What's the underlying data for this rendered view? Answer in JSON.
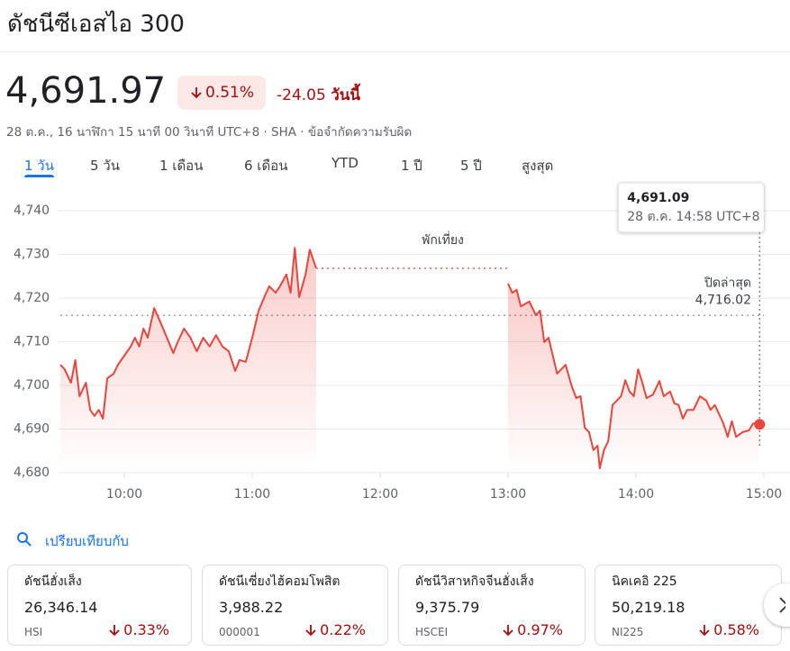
{
  "header": {
    "title": "ดัชนีซีเอสไอ 300"
  },
  "quote": {
    "price": "4,691.97",
    "change_percent": "0.51%",
    "change": "-24.05",
    "change_period": "วันนี้",
    "timestamp": "28 ต.ค., 16 นาฬิกา 15 นาที 00 วินาที UTC+8 · SHA · ข้อจำกัดความรับผิด"
  },
  "tabs": [
    "1 วัน",
    "5 วัน",
    "1 เดือน",
    "6 เดือน",
    "YTD",
    "1 ปี",
    "5 ปี",
    "สูงสุด"
  ],
  "active_tab": 0,
  "chart_data": {
    "type": "line",
    "x": [
      570,
      572,
      575,
      577,
      579,
      582,
      584,
      586,
      588,
      590,
      592,
      595,
      597,
      600,
      603,
      605,
      607,
      609,
      611,
      614,
      617,
      620,
      623,
      625,
      628,
      631,
      634,
      637,
      640,
      643,
      646,
      649,
      652,
      654,
      657,
      660,
      663,
      666,
      668,
      671,
      673,
      676,
      678,
      680,
      682,
      685,
      687,
      690,
      null,
      780,
      782,
      784,
      786,
      790,
      793,
      795,
      797,
      799,
      801,
      803,
      805,
      807,
      810,
      812,
      814,
      816,
      818,
      820,
      822,
      823,
      825,
      827,
      829,
      833,
      835,
      837,
      839,
      841,
      843,
      845,
      848,
      851,
      853,
      856,
      858,
      860,
      862,
      864,
      867,
      870,
      873,
      875,
      877,
      879,
      881,
      883,
      885,
      887,
      890,
      893,
      895,
      898
    ],
    "series": [
      {
        "color": "#e8453c",
        "values": [
          4704.7,
          4703.7,
          4700.6,
          4705.8,
          4697.5,
          4700.6,
          4694.4,
          4693.0,
          4694.4,
          4692.4,
          4701.6,
          4702.7,
          4704.7,
          4706.8,
          4708.9,
          4710.9,
          4708.9,
          4713.0,
          4710.9,
          4717.7,
          4714.4,
          4710.9,
          4707.4,
          4709.9,
          4713.0,
          4710.9,
          4707.8,
          4710.9,
          4708.9,
          4711.5,
          4708.9,
          4707.8,
          4703.3,
          4705.8,
          4705.4,
          4710.9,
          4717.1,
          4720.6,
          4722.7,
          4721.2,
          4722.7,
          4725.4,
          4721.2,
          4731.5,
          4720.2,
          4725.4,
          4731.1,
          4726.8,
          null,
          4723.3,
          4721.2,
          4721.9,
          4718.1,
          4719.2,
          4716.1,
          4717.1,
          4709.9,
          4710.9,
          4706.8,
          4702.7,
          4703.7,
          4704.7,
          4699.6,
          4697.1,
          4697.5,
          4690.3,
          4689.3,
          4685.2,
          4686.2,
          4681.0,
          4685.2,
          4687.2,
          4695.5,
          4697.5,
          4701.2,
          4698.6,
          4697.5,
          4703.7,
          4700.6,
          4697.1,
          4697.9,
          4701.0,
          4697.5,
          4698.6,
          4695.9,
          4695.5,
          4692.4,
          4694.4,
          4694.4,
          4697.5,
          4696.5,
          4694.4,
          4695.5,
          4693.4,
          4691.3,
          4688.2,
          4691.8,
          4688.2,
          4689.3,
          4689.7,
          4691.3,
          4691.09
        ]
      }
    ],
    "xlim": [
      570,
      900
    ],
    "xticks": [
      {
        "value": 600,
        "label": "10:00"
      },
      {
        "value": 660,
        "label": "11:00"
      },
      {
        "value": 720,
        "label": "12:00"
      },
      {
        "value": 780,
        "label": "13:00"
      },
      {
        "value": 840,
        "label": "14:00"
      },
      {
        "value": 900,
        "label": "15:00"
      }
    ],
    "ylim": [
      4680,
      4740
    ],
    "yticks": [
      {
        "value": 4680,
        "label": "4,680"
      },
      {
        "value": 4690,
        "label": "4,690"
      },
      {
        "value": 4700,
        "label": "4,700"
      },
      {
        "value": 4710,
        "label": "4,710"
      },
      {
        "value": 4720,
        "label": "4,720"
      },
      {
        "value": 4730,
        "label": "4,730"
      },
      {
        "value": 4740,
        "label": "4,740"
      }
    ],
    "grid": true,
    "annotation": "พักเที่ยง",
    "previous_close": {
      "label": "ปิดล่าสุด",
      "value": 4716.02,
      "value_label": "4,716.02"
    },
    "tooltip": {
      "value": 4691.09,
      "value_label": "4,691.09",
      "time": "28 ต.ค. 14:58 UTC+8"
    }
  },
  "compare": {
    "label": "เปรียบเทียบกับ",
    "cards": [
      {
        "name": "ดัชนีฮั่งเส็ง",
        "price": "26,346.14",
        "symbol": "HSI",
        "change": "0.33%"
      },
      {
        "name": "ดัชนีเซี่ยงไฮ้คอมโพสิต",
        "price": "3,988.22",
        "symbol": "000001",
        "change": "0.22%"
      },
      {
        "name": "ดัชนีวิสาหกิจจีนฮั่งเส็ง",
        "price": "9,375.79",
        "symbol": "HSCEI",
        "change": "0.97%"
      },
      {
        "name": "นิคเคอิ 225",
        "price": "50,219.18",
        "symbol": "NI225",
        "change": "0.58%"
      }
    ]
  }
}
